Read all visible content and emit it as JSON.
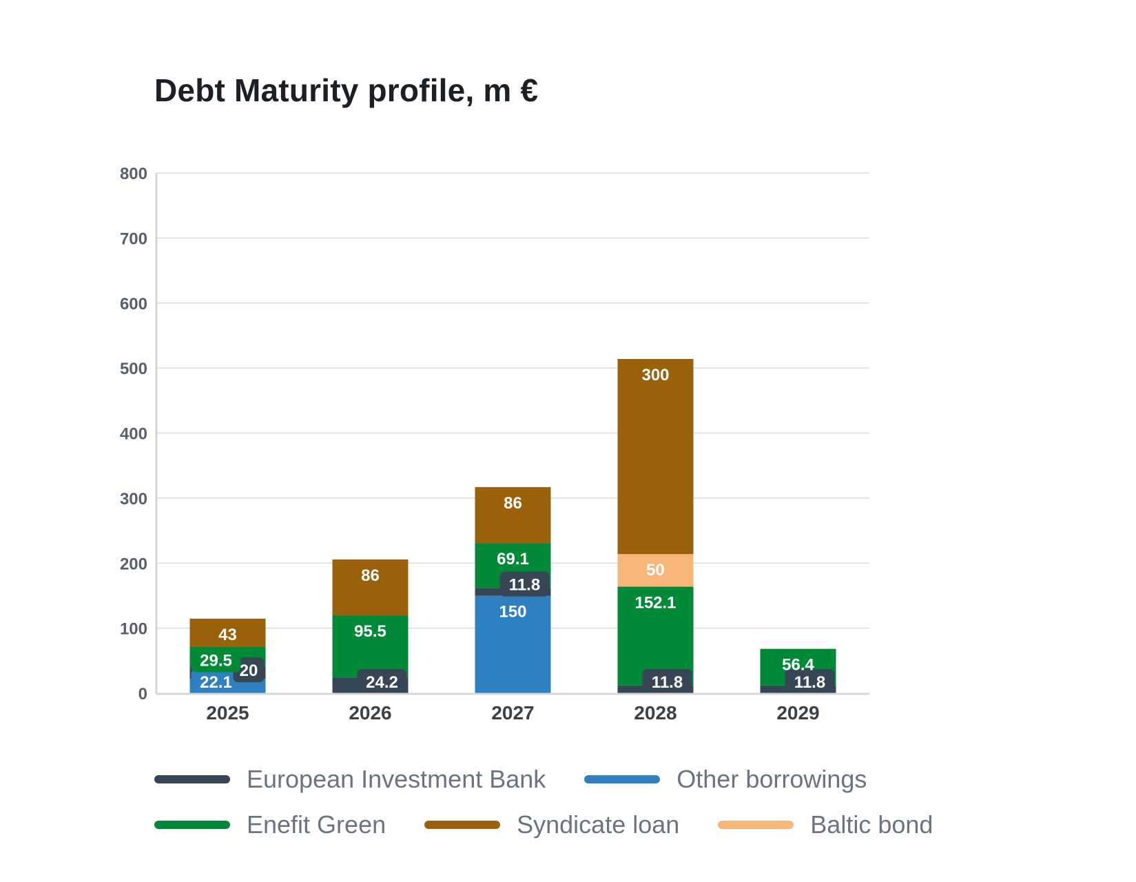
{
  "chart_data": {
    "type": "bar",
    "stacked": true,
    "title": "Debt Maturity profile, m €",
    "xlabel": "",
    "ylabel": "",
    "categories": [
      "2025",
      "2026",
      "2027",
      "2028",
      "2029"
    ],
    "ylim": [
      0,
      800
    ],
    "yticks": [
      0,
      100,
      200,
      300,
      400,
      500,
      600,
      700,
      800
    ],
    "grid": true,
    "legend_position": "bottom",
    "series": [
      {
        "name": "Other borrowings",
        "color": "#2f80c0",
        "values": [
          22.1,
          null,
          150,
          null,
          null
        ]
      },
      {
        "name": "European Investment Bank",
        "color": "#374654",
        "values": [
          20,
          24.2,
          11.8,
          11.8,
          11.8
        ]
      },
      {
        "name": "Enefit Green",
        "color": "#008a37",
        "values": [
          29.5,
          95.5,
          69.1,
          152.1,
          56.4
        ]
      },
      {
        "name": "Baltic bond",
        "color": "#f8b679",
        "values": [
          null,
          null,
          null,
          50,
          null
        ]
      },
      {
        "name": "Syndicate loan",
        "color": "#9b610a",
        "values": [
          43,
          86,
          86,
          300,
          null
        ]
      }
    ],
    "legend_order": [
      [
        "European Investment Bank",
        "Other borrowings"
      ],
      [
        "Enefit Green",
        "Syndicate loan",
        "Baltic bond"
      ]
    ]
  }
}
